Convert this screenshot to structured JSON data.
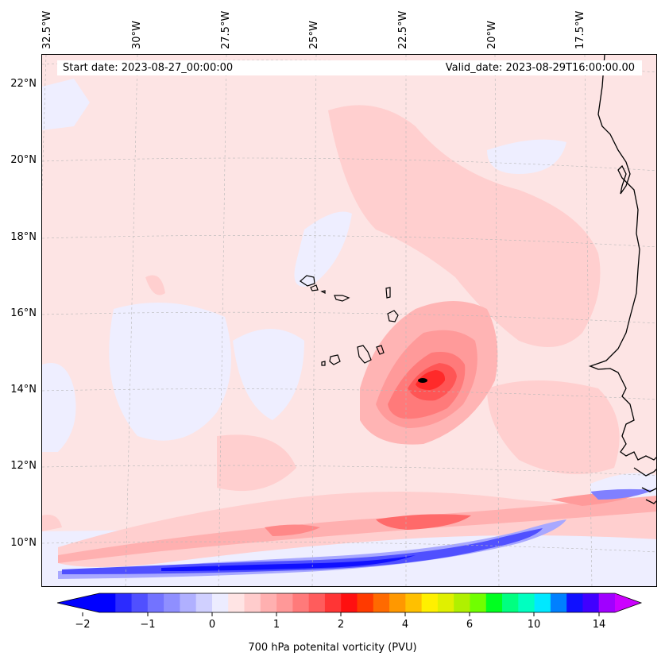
{
  "map": {
    "start_date": "Start date: 2023-08-27_00:00:00",
    "valid_date": "Valid_date: 2023-08-29T16:00:00.00",
    "lon_labels": [
      "32.5°W",
      "30°W",
      "27.5°W",
      "25°W",
      "22.5°W",
      "20°W",
      "17.5°W"
    ],
    "lat_labels": [
      "22°N",
      "20°N",
      "18°N",
      "16°N",
      "14°N",
      "12°N",
      "10°N"
    ],
    "colorbar": {
      "label": "700 hPa potenital vorticity (PVU)",
      "tick_labels": [
        "−2",
        "−1",
        "0",
        "1",
        "2",
        "4",
        "6",
        "10",
        "14"
      ],
      "colors": [
        "#0000ff",
        "#2b2bff",
        "#5050ff",
        "#7373ff",
        "#8f8fff",
        "#b0b0ff",
        "#d0d0ff",
        "#ececff",
        "#ffe4e4",
        "#ffcccc",
        "#ffb0b0",
        "#ff9898",
        "#ff7a7a",
        "#ff5c5c",
        "#ff3535",
        "#ff1010",
        "#ff3a00",
        "#ff6a00",
        "#ff9800",
        "#ffc000",
        "#fff000",
        "#e0f000",
        "#b0f000",
        "#70ff00",
        "#00ff20",
        "#00ff80",
        "#00ffc0",
        "#00e8ff",
        "#0080ff",
        "#1010ff",
        "#4000ff",
        "#a000ff"
      ],
      "under_color": "#0000ff",
      "over_color": "#cc00ff"
    }
  }
}
